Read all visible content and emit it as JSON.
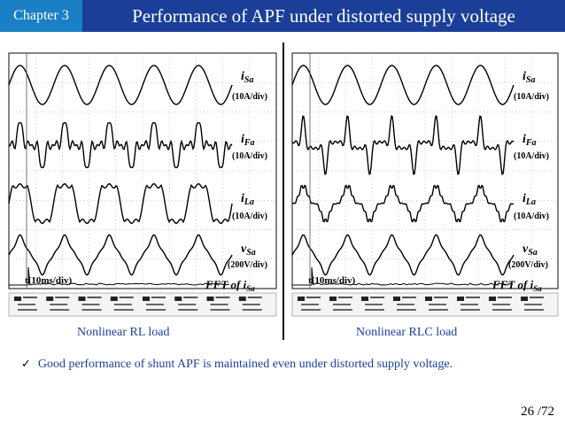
{
  "header": {
    "chapter_label": "Chapter 3",
    "title": "Performance of APF under distorted supply voltage"
  },
  "left_scope": {
    "caption": "Nonlinear RL load",
    "channels": [
      {
        "name": "i",
        "sub": "Sa",
        "scale": "(10A/div)"
      },
      {
        "name": "i",
        "sub": "Fa",
        "scale": "(10A/div)"
      },
      {
        "name": "i",
        "sub": "La",
        "scale": "(10A/div)"
      },
      {
        "name": "v",
        "sub": "Sa",
        "scale": "(200V/div)"
      }
    ],
    "time_label": "t(10ms/div)",
    "fft_label": "FFT of i",
    "fft_sub": "Sa"
  },
  "right_scope": {
    "caption": "Nonlinear RLC load",
    "channels": [
      {
        "name": "i",
        "sub": "Sa",
        "scale": "(10A/div)"
      },
      {
        "name": "i",
        "sub": "Fa",
        "scale": "(10A/div)"
      },
      {
        "name": "i",
        "sub": "La",
        "scale": "(10A/div)"
      },
      {
        "name": "v",
        "sub": "Sa",
        "scale": "(200V/div)"
      }
    ],
    "time_label": "t(10ms/div)",
    "fft_label": "FFT of i",
    "fft_sub": "Sa"
  },
  "bullet_text": "Good performance of shunt APF is maintained even under distorted supply voltage.",
  "page_number": "26 /72"
}
